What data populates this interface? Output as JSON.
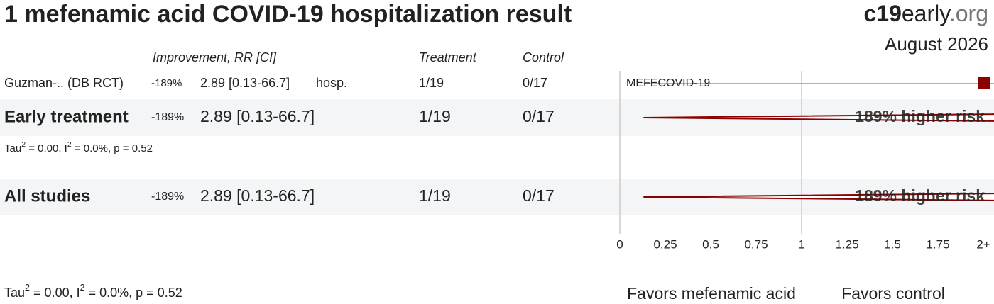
{
  "chart_data": {
    "type": "forest",
    "title": "1 mefenamic acid COVID-19 hospitalization result",
    "brand": [
      "c19",
      "early",
      ".org"
    ],
    "date": "August 2026",
    "columns": [
      "Improvement, RR [CI]",
      "Treatment",
      "Control"
    ],
    "studies": [
      {
        "name": "Guzman-.. (DB RCT)",
        "improvement": "-189%",
        "rr": 2.89,
        "ci": [
          0.13,
          66.7
        ],
        "rr_label": "2.89 [0.13-66.7]",
        "outcome": "hosp.",
        "treatment": "1/19",
        "control": "0/17",
        "plot_label": "MEFECOVID-19"
      }
    ],
    "groups": [
      {
        "name": "Early treatment",
        "improvement": "-189%",
        "rr": 2.89,
        "ci": [
          0.13,
          66.7
        ],
        "rr_label": "2.89 [0.13-66.7]",
        "treatment": "1/19",
        "control": "0/17",
        "risk_label": "189% higher risk",
        "stats": [
          "Tau",
          "2",
          " = 0.00, I",
          "2",
          " = 0.0%, p = 0.52"
        ]
      },
      {
        "name": "All studies",
        "improvement": "-189%",
        "rr": 2.89,
        "ci": [
          0.13,
          66.7
        ],
        "rr_label": "2.89 [0.13-66.7]",
        "treatment": "1/19",
        "control": "0/17",
        "risk_label": "189% higher risk",
        "stats": [
          "Tau",
          "2",
          " = 0.00, I",
          "2",
          " = 0.0%, p = 0.52"
        ]
      }
    ],
    "xlim": [
      0,
      2
    ],
    "xticks": [
      0,
      0.25,
      0.5,
      0.75,
      1,
      1.25,
      1.5,
      1.75,
      {
        "value": 2,
        "label": "2+"
      }
    ],
    "favors": [
      "Favors mefenamic acid",
      "Favors control"
    ]
  }
}
